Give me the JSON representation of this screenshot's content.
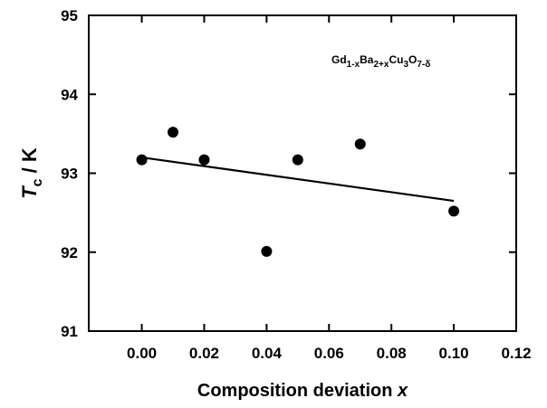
{
  "chart_data": {
    "type": "scatter",
    "x": [
      0.0,
      0.01,
      0.02,
      0.04,
      0.05,
      0.07,
      0.1
    ],
    "values": [
      93.17,
      93.52,
      93.17,
      92.01,
      93.17,
      93.37,
      92.52
    ],
    "color": "#000000",
    "fit": {
      "x": [
        0.0,
        0.1
      ],
      "values": [
        93.2,
        92.65
      ]
    },
    "xlim": [
      -0.017,
      0.12
    ],
    "ylim": [
      91,
      95
    ],
    "xticks": [
      {
        "value": 0,
        "label": "0.00"
      },
      {
        "value": 0.02,
        "label": "0.02"
      },
      {
        "value": 0.04,
        "label": "0.04"
      },
      {
        "value": 0.06,
        "label": "0.06"
      },
      {
        "value": 0.08,
        "label": "0.08"
      },
      {
        "value": 0.1,
        "label": "0.10"
      },
      {
        "value": 0.12,
        "label": "0.12"
      }
    ],
    "yticks": [
      91,
      92,
      93,
      94,
      95
    ],
    "xlabel": [
      "Composition deviation ",
      "x"
    ],
    "ylabel": [
      "T",
      "c",
      " / K"
    ],
    "annotation": [
      "Gd",
      "1-x",
      "Ba",
      "2+x",
      "Cu",
      "3",
      "O",
      "7-δ"
    ]
  }
}
